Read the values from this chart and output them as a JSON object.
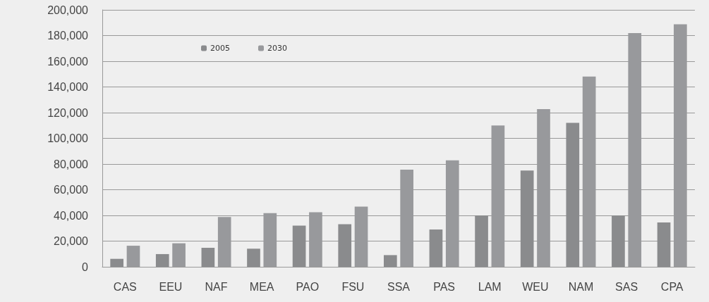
{
  "chart_data": {
    "type": "bar",
    "categories": [
      "CAS",
      "EEU",
      "NAF",
      "MEA",
      "PAO",
      "FSU",
      "SSA",
      "PAS",
      "LAM",
      "WEU",
      "NAM",
      "SAS",
      "CPA"
    ],
    "series": [
      {
        "name": "2005",
        "color": "#8a8b8d",
        "values": [
          6200,
          9900,
          14800,
          14100,
          32100,
          33200,
          9100,
          29000,
          39800,
          74900,
          112000,
          39800,
          34500
        ]
      },
      {
        "name": "2030",
        "color": "#98999c",
        "values": [
          16400,
          18300,
          38700,
          41800,
          42400,
          46800,
          75600,
          82900,
          110000,
          122700,
          148100,
          181900,
          188700
        ]
      }
    ],
    "ylim": [
      0,
      200000
    ],
    "yticks": [
      0,
      {
        "value": 20000,
        "label": "20,000"
      },
      {
        "value": 40000,
        "label": "40,000"
      },
      {
        "value": 60000,
        "label": "60,000"
      },
      {
        "value": 80000,
        "label": "80,000"
      },
      {
        "value": 100000,
        "label": "100,000"
      },
      {
        "value": 120000,
        "label": "120,000"
      },
      {
        "value": 140000,
        "label": "140,000"
      },
      {
        "value": 160000,
        "label": "160,000"
      },
      {
        "value": 180000,
        "label": "180,000"
      },
      {
        "value": 200000,
        "label": "200,000"
      }
    ],
    "grid": "y",
    "legend": "top left"
  }
}
